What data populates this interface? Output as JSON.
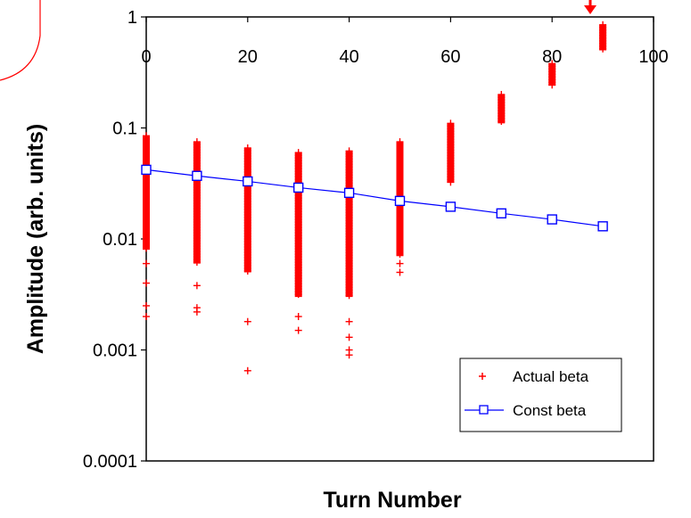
{
  "chart_data": {
    "type": "scatter",
    "title": "",
    "xlabel": "Turn Number",
    "ylabel": "Amplitude (arb. units)",
    "x_ticks": [
      "0",
      "20",
      "40",
      "60",
      "80",
      "100"
    ],
    "y_ticks": [
      "1",
      "0.1",
      "0.01",
      "0.001",
      "0.0001"
    ],
    "xlim": [
      0,
      100
    ],
    "ylim": [
      0.0001,
      1
    ],
    "y_scale": "log",
    "x_axis_position": "top",
    "grid": false,
    "legend_position": "bottom-right",
    "legend_entries": [
      "Actual beta",
      "Const beta"
    ],
    "series": [
      {
        "name": "Actual beta",
        "marker": "plus",
        "color": "#ff0000",
        "points": [
          {
            "x": 0,
            "dense_range": [
              0.008,
              0.085
            ],
            "outliers": [
              0.006,
              0.004,
              0.0025,
              0.002
            ]
          },
          {
            "x": 10,
            "dense_range": [
              0.006,
              0.075
            ],
            "outliers": [
              0.0038,
              0.0024,
              0.0022
            ]
          },
          {
            "x": 20,
            "dense_range": [
              0.005,
              0.066
            ],
            "outliers": [
              0.0018,
              0.00065
            ]
          },
          {
            "x": 30,
            "dense_range": [
              0.003,
              0.06
            ],
            "outliers": [
              0.002,
              0.0015
            ]
          },
          {
            "x": 40,
            "dense_range": [
              0.003,
              0.062
            ],
            "outliers": [
              0.0018,
              0.0013,
              0.001,
              0.0009
            ]
          },
          {
            "x": 50,
            "dense_range": [
              0.007,
              0.075
            ],
            "outliers": [
              0.006,
              0.005
            ]
          },
          {
            "x": 60,
            "dense_range": [
              0.032,
              0.11
            ],
            "outliers": []
          },
          {
            "x": 70,
            "dense_range": [
              0.11,
              0.2
            ],
            "outliers": []
          },
          {
            "x": 80,
            "dense_range": [
              0.24,
              0.38
            ],
            "outliers": []
          },
          {
            "x": 90,
            "dense_range": [
              0.5,
              0.85
            ],
            "outliers": []
          }
        ]
      },
      {
        "name": "Const beta",
        "marker": "square",
        "color": "#0000ff",
        "x": [
          0,
          10,
          20,
          30,
          40,
          50,
          60,
          70,
          80,
          90
        ],
        "y": [
          0.042,
          0.037,
          0.033,
          0.029,
          0.026,
          0.022,
          0.0195,
          0.017,
          0.015,
          0.013
        ]
      }
    ]
  },
  "colors": {
    "actual": "#ff0000",
    "const": "#0000ff",
    "annotation": "#ff0000"
  }
}
